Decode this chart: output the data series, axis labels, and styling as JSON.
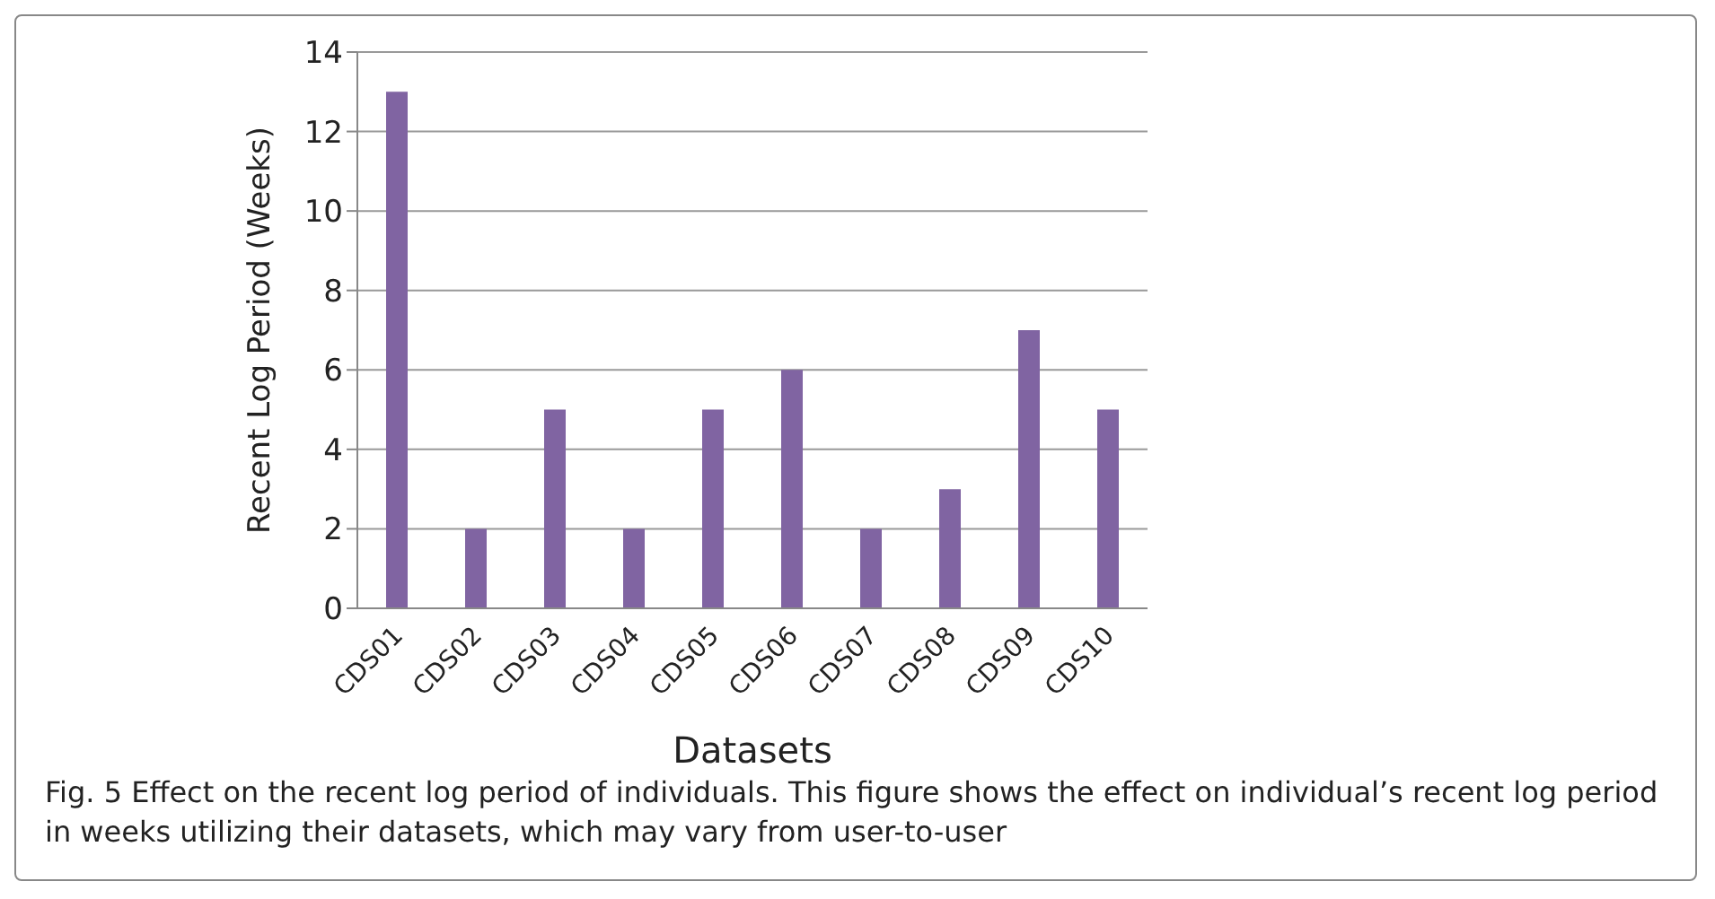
{
  "chart_data": {
    "type": "bar",
    "xlabel": "Datasets",
    "ylabel": "Recent Log Period (Weeks)",
    "categories": [
      "CDS01",
      "CDS02",
      "CDS03",
      "CDS04",
      "CDS05",
      "CDS06",
      "CDS07",
      "CDS08",
      "CDS09",
      "CDS10"
    ],
    "values": [
      13,
      2,
      5,
      2,
      5,
      6,
      2,
      3,
      7,
      5
    ],
    "color": "#8064a2",
    "ylim": [
      0,
      14
    ],
    "yticks": [
      0,
      2,
      4,
      6,
      8,
      10,
      12,
      14
    ],
    "grid": "y",
    "annotations": [
      "Fig. 5  Effect on the recent log period of individuals. This figure shows the effect on individual’s recent log period in weeks utilizing their datasets, which may vary from user-to-user"
    ]
  }
}
